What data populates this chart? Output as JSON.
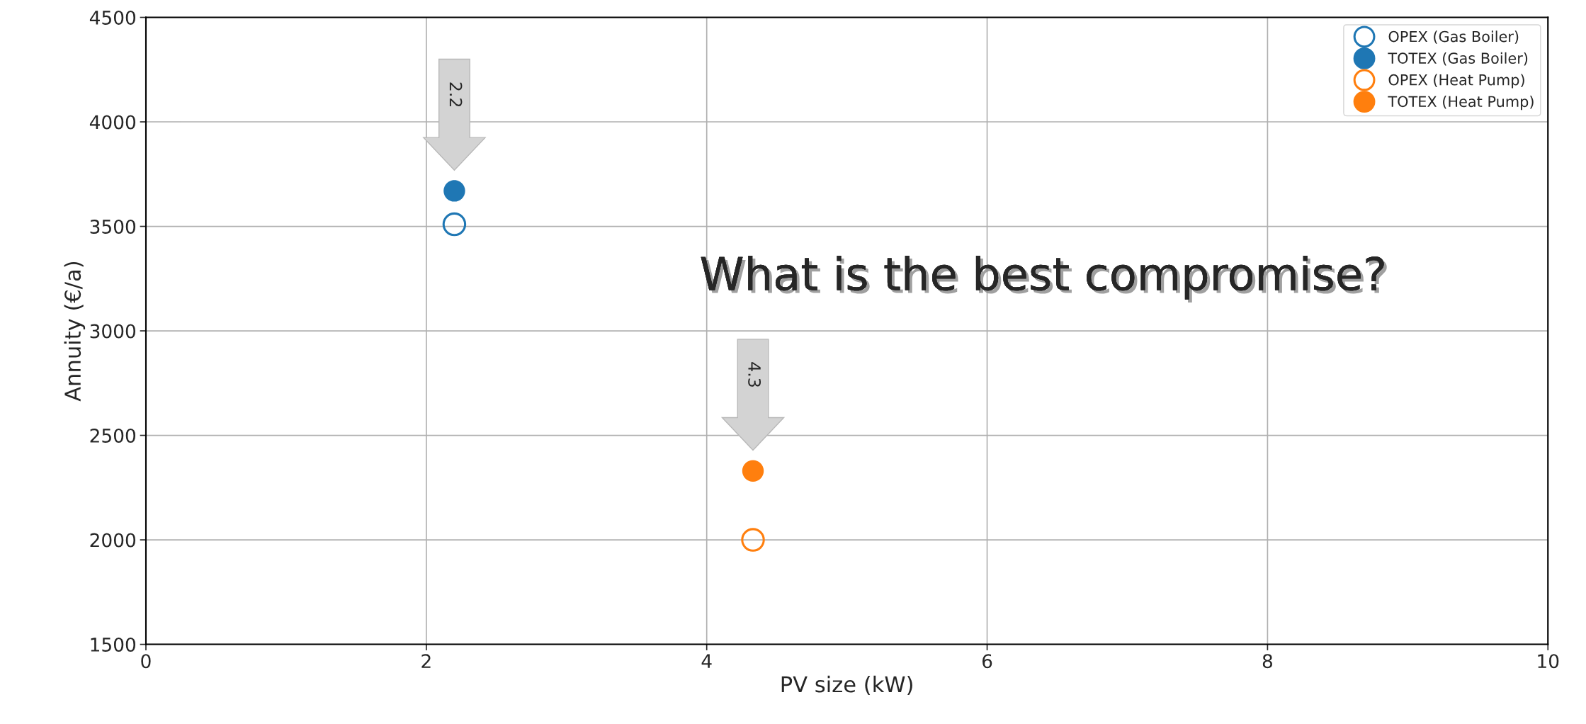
{
  "chart_data": {
    "type": "scatter",
    "xlabel": "PV size (kW)",
    "ylabel": "Annuity (€/a)",
    "xlim": [
      0,
      10
    ],
    "xticks": [
      0,
      2,
      4,
      6,
      8,
      10
    ],
    "ylim": [
      1500,
      4500
    ],
    "yticks": [
      1500,
      2000,
      2500,
      3000,
      3500,
      4000,
      4500
    ],
    "x": [
      2.2,
      4.33
    ],
    "grid": true,
    "legend": "top right",
    "marker": "circle",
    "series": [
      {
        "name": "OPEX (Gas Boiler)",
        "color": "#1f77b4",
        "values": [
          3510,
          null
        ]
      },
      {
        "name": "TOTEX (Gas Boiler)",
        "color": "#1f77b4",
        "values": [
          3670,
          null
        ]
      },
      {
        "name": "OPEX (Heat Pump)",
        "color": "#ff7f0e",
        "values": [
          null,
          2000
        ]
      },
      {
        "name": "TOTEX (Heat Pump)",
        "color": "#ff7f0e",
        "values": [
          null,
          2330
        ]
      }
    ],
    "annotations": [
      "2.2",
      "4.3",
      "What is the best compromise?"
    ]
  }
}
